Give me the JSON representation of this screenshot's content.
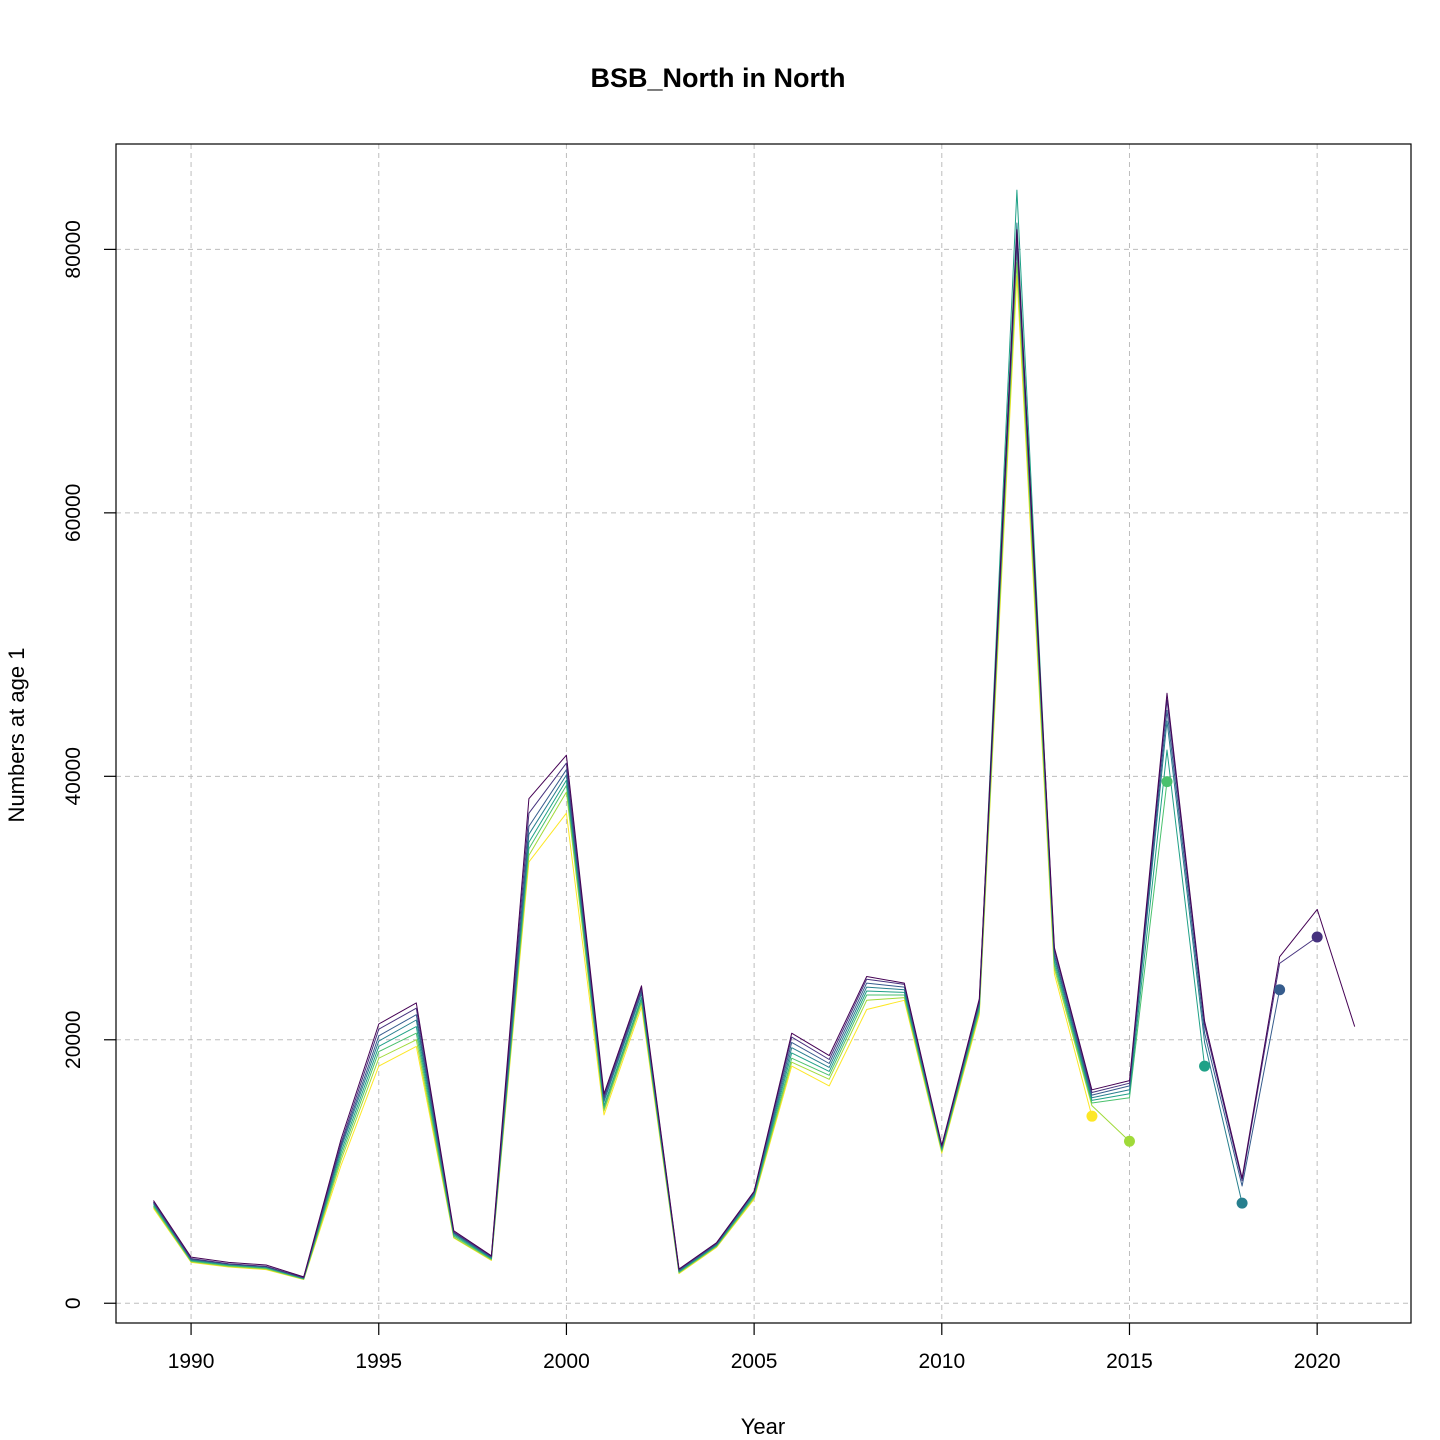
{
  "chart_data": {
    "type": "line",
    "title": "BSB_North in North",
    "xlabel": "Year",
    "ylabel": "Numbers at age 1",
    "xlim": [
      1988,
      2022.5
    ],
    "ylim": [
      -1500,
      88000
    ],
    "x_ticks": [
      1990,
      1995,
      2000,
      2005,
      2010,
      2015,
      2020
    ],
    "y_ticks": [
      0,
      20000,
      40000,
      60000,
      80000
    ],
    "grid": true,
    "legend": "none",
    "series": [
      {
        "color": "#440154",
        "x": [
          1989,
          1990,
          1991,
          1992,
          1993,
          1994,
          1995,
          1996,
          1997,
          1998,
          1999,
          2000,
          2001,
          2002,
          2003,
          2004,
          2005,
          2006,
          2007,
          2008,
          2009,
          2010,
          2011,
          2012,
          2013,
          2014,
          2015,
          2016,
          2017,
          2018,
          2019,
          2020,
          2021
        ],
        "y": [
          7800,
          3500,
          3100,
          2900,
          2000,
          12500,
          21200,
          22800,
          5500,
          3600,
          38300,
          41600,
          15900,
          24100,
          2600,
          4600,
          8500,
          20500,
          18800,
          24800,
          24300,
          12000,
          23100,
          81500,
          27000,
          16200,
          16900,
          46300,
          21400,
          9500,
          26300,
          29900,
          21000
        ]
      },
      {
        "color": "#46327e",
        "x": [
          1989,
          1990,
          1991,
          1992,
          1993,
          1994,
          1995,
          1996,
          1997,
          1998,
          1999,
          2000,
          2001,
          2002,
          2003,
          2004,
          2005,
          2006,
          2007,
          2008,
          2009,
          2010,
          2011,
          2012,
          2013,
          2014,
          2015,
          2016,
          2017,
          2018,
          2019,
          2020
        ],
        "y": [
          7700,
          3400,
          3000,
          2800,
          1950,
          12200,
          20800,
          22400,
          5400,
          3550,
          37200,
          41000,
          15700,
          23900,
          2550,
          4550,
          8450,
          20200,
          18500,
          24600,
          24200,
          11900,
          22900,
          81000,
          26800,
          16000,
          16700,
          45800,
          21100,
          9300,
          25800,
          27800
        ]
      },
      {
        "color": "#365c8d",
        "x": [
          1989,
          1990,
          1991,
          1992,
          1993,
          1994,
          1995,
          1996,
          1997,
          1998,
          1999,
          2000,
          2001,
          2002,
          2003,
          2004,
          2005,
          2006,
          2007,
          2008,
          2009,
          2010,
          2011,
          2012,
          2013,
          2014,
          2015,
          2016,
          2017,
          2018,
          2019
        ],
        "y": [
          7650,
          3350,
          2980,
          2780,
          1930,
          12000,
          20300,
          21900,
          5350,
          3500,
          36200,
          40500,
          15500,
          23700,
          2500,
          4500,
          8400,
          19800,
          18200,
          24300,
          24000,
          11850,
          22800,
          80500,
          26500,
          15800,
          16500,
          45000,
          20500,
          8900,
          23800
        ]
      },
      {
        "color": "#277f8e",
        "x": [
          1989,
          1990,
          1991,
          1992,
          1993,
          1994,
          1995,
          1996,
          1997,
          1998,
          1999,
          2000,
          2001,
          2002,
          2003,
          2004,
          2005,
          2006,
          2007,
          2008,
          2009,
          2010,
          2011,
          2012,
          2013,
          2014,
          2015,
          2016,
          2017,
          2018
        ],
        "y": [
          7600,
          3300,
          2950,
          2750,
          1910,
          11800,
          19900,
          21500,
          5300,
          3450,
          35600,
          40100,
          15300,
          23500,
          2450,
          4450,
          8300,
          19400,
          17900,
          24000,
          23800,
          11800,
          22700,
          82000,
          26300,
          15600,
          16200,
          44200,
          19800,
          7600
        ]
      },
      {
        "color": "#1fa187",
        "x": [
          1989,
          1990,
          1991,
          1992,
          1993,
          1994,
          1995,
          1996,
          1997,
          1998,
          1999,
          2000,
          2001,
          2002,
          2003,
          2004,
          2005,
          2006,
          2007,
          2008,
          2009,
          2010,
          2011,
          2012,
          2013,
          2014,
          2015,
          2016,
          2017
        ],
        "y": [
          7500,
          3250,
          2900,
          2700,
          1880,
          11500,
          19500,
          21000,
          5200,
          3400,
          35000,
          39700,
          15000,
          23200,
          2400,
          4400,
          8200,
          19000,
          17600,
          23700,
          23600,
          11700,
          22500,
          84500,
          26000,
          15400,
          15900,
          42000,
          18000
        ]
      },
      {
        "color": "#4ac16d",
        "x": [
          1989,
          1990,
          1991,
          1992,
          1993,
          1994,
          1995,
          1996,
          1997,
          1998,
          1999,
          2000,
          2001,
          2002,
          2003,
          2004,
          2005,
          2006,
          2007,
          2008,
          2009,
          2010,
          2011,
          2012,
          2013,
          2014,
          2015,
          2016
        ],
        "y": [
          7400,
          3200,
          2850,
          2650,
          1850,
          11200,
          19100,
          20500,
          5100,
          3350,
          34500,
          39300,
          14800,
          23000,
          2350,
          4350,
          8100,
          18600,
          17300,
          23400,
          23400,
          11600,
          22300,
          80000,
          25700,
          15200,
          15600,
          39600
        ]
      },
      {
        "color": "#a0da39",
        "x": [
          1989,
          1990,
          1991,
          1992,
          1993,
          1994,
          1995,
          1996,
          1997,
          1998,
          1999,
          2000,
          2001,
          2002,
          2003,
          2004,
          2005,
          2006,
          2007,
          2008,
          2009,
          2010,
          2011,
          2012,
          2013,
          2014,
          2015
        ],
        "y": [
          7300,
          3150,
          2800,
          2600,
          1820,
          10900,
          18600,
          20000,
          5000,
          3300,
          34000,
          38800,
          14600,
          22800,
          2300,
          4300,
          8000,
          18300,
          17000,
          23000,
          23200,
          11500,
          22100,
          79000,
          25400,
          15000,
          12300
        ]
      },
      {
        "color": "#fde725",
        "x": [
          1989,
          1990,
          1991,
          1992,
          1993,
          1994,
          1995,
          1996,
          1997,
          1998,
          1999,
          2000,
          2001,
          2002,
          2003,
          2004,
          2005,
          2006,
          2007,
          2008,
          2009,
          2010,
          2011,
          2012,
          2013,
          2014
        ],
        "y": [
          7200,
          3100,
          2750,
          2550,
          1800,
          10500,
          18000,
          19500,
          4950,
          3250,
          33500,
          37200,
          14300,
          22500,
          2250,
          4250,
          7900,
          18000,
          16500,
          22300,
          23000,
          11400,
          21900,
          78000,
          25000,
          14200
        ]
      }
    ],
    "points": [
      {
        "x": 2014,
        "y": 14200,
        "color": "#fde725"
      },
      {
        "x": 2015,
        "y": 12300,
        "color": "#a0da39"
      },
      {
        "x": 2016,
        "y": 39600,
        "color": "#4ac16d"
      },
      {
        "x": 2017,
        "y": 18000,
        "color": "#1fa187"
      },
      {
        "x": 2018,
        "y": 7600,
        "color": "#277f8e"
      },
      {
        "x": 2019,
        "y": 23800,
        "color": "#365c8d"
      },
      {
        "x": 2020,
        "y": 27800,
        "color": "#46327e"
      }
    ]
  }
}
